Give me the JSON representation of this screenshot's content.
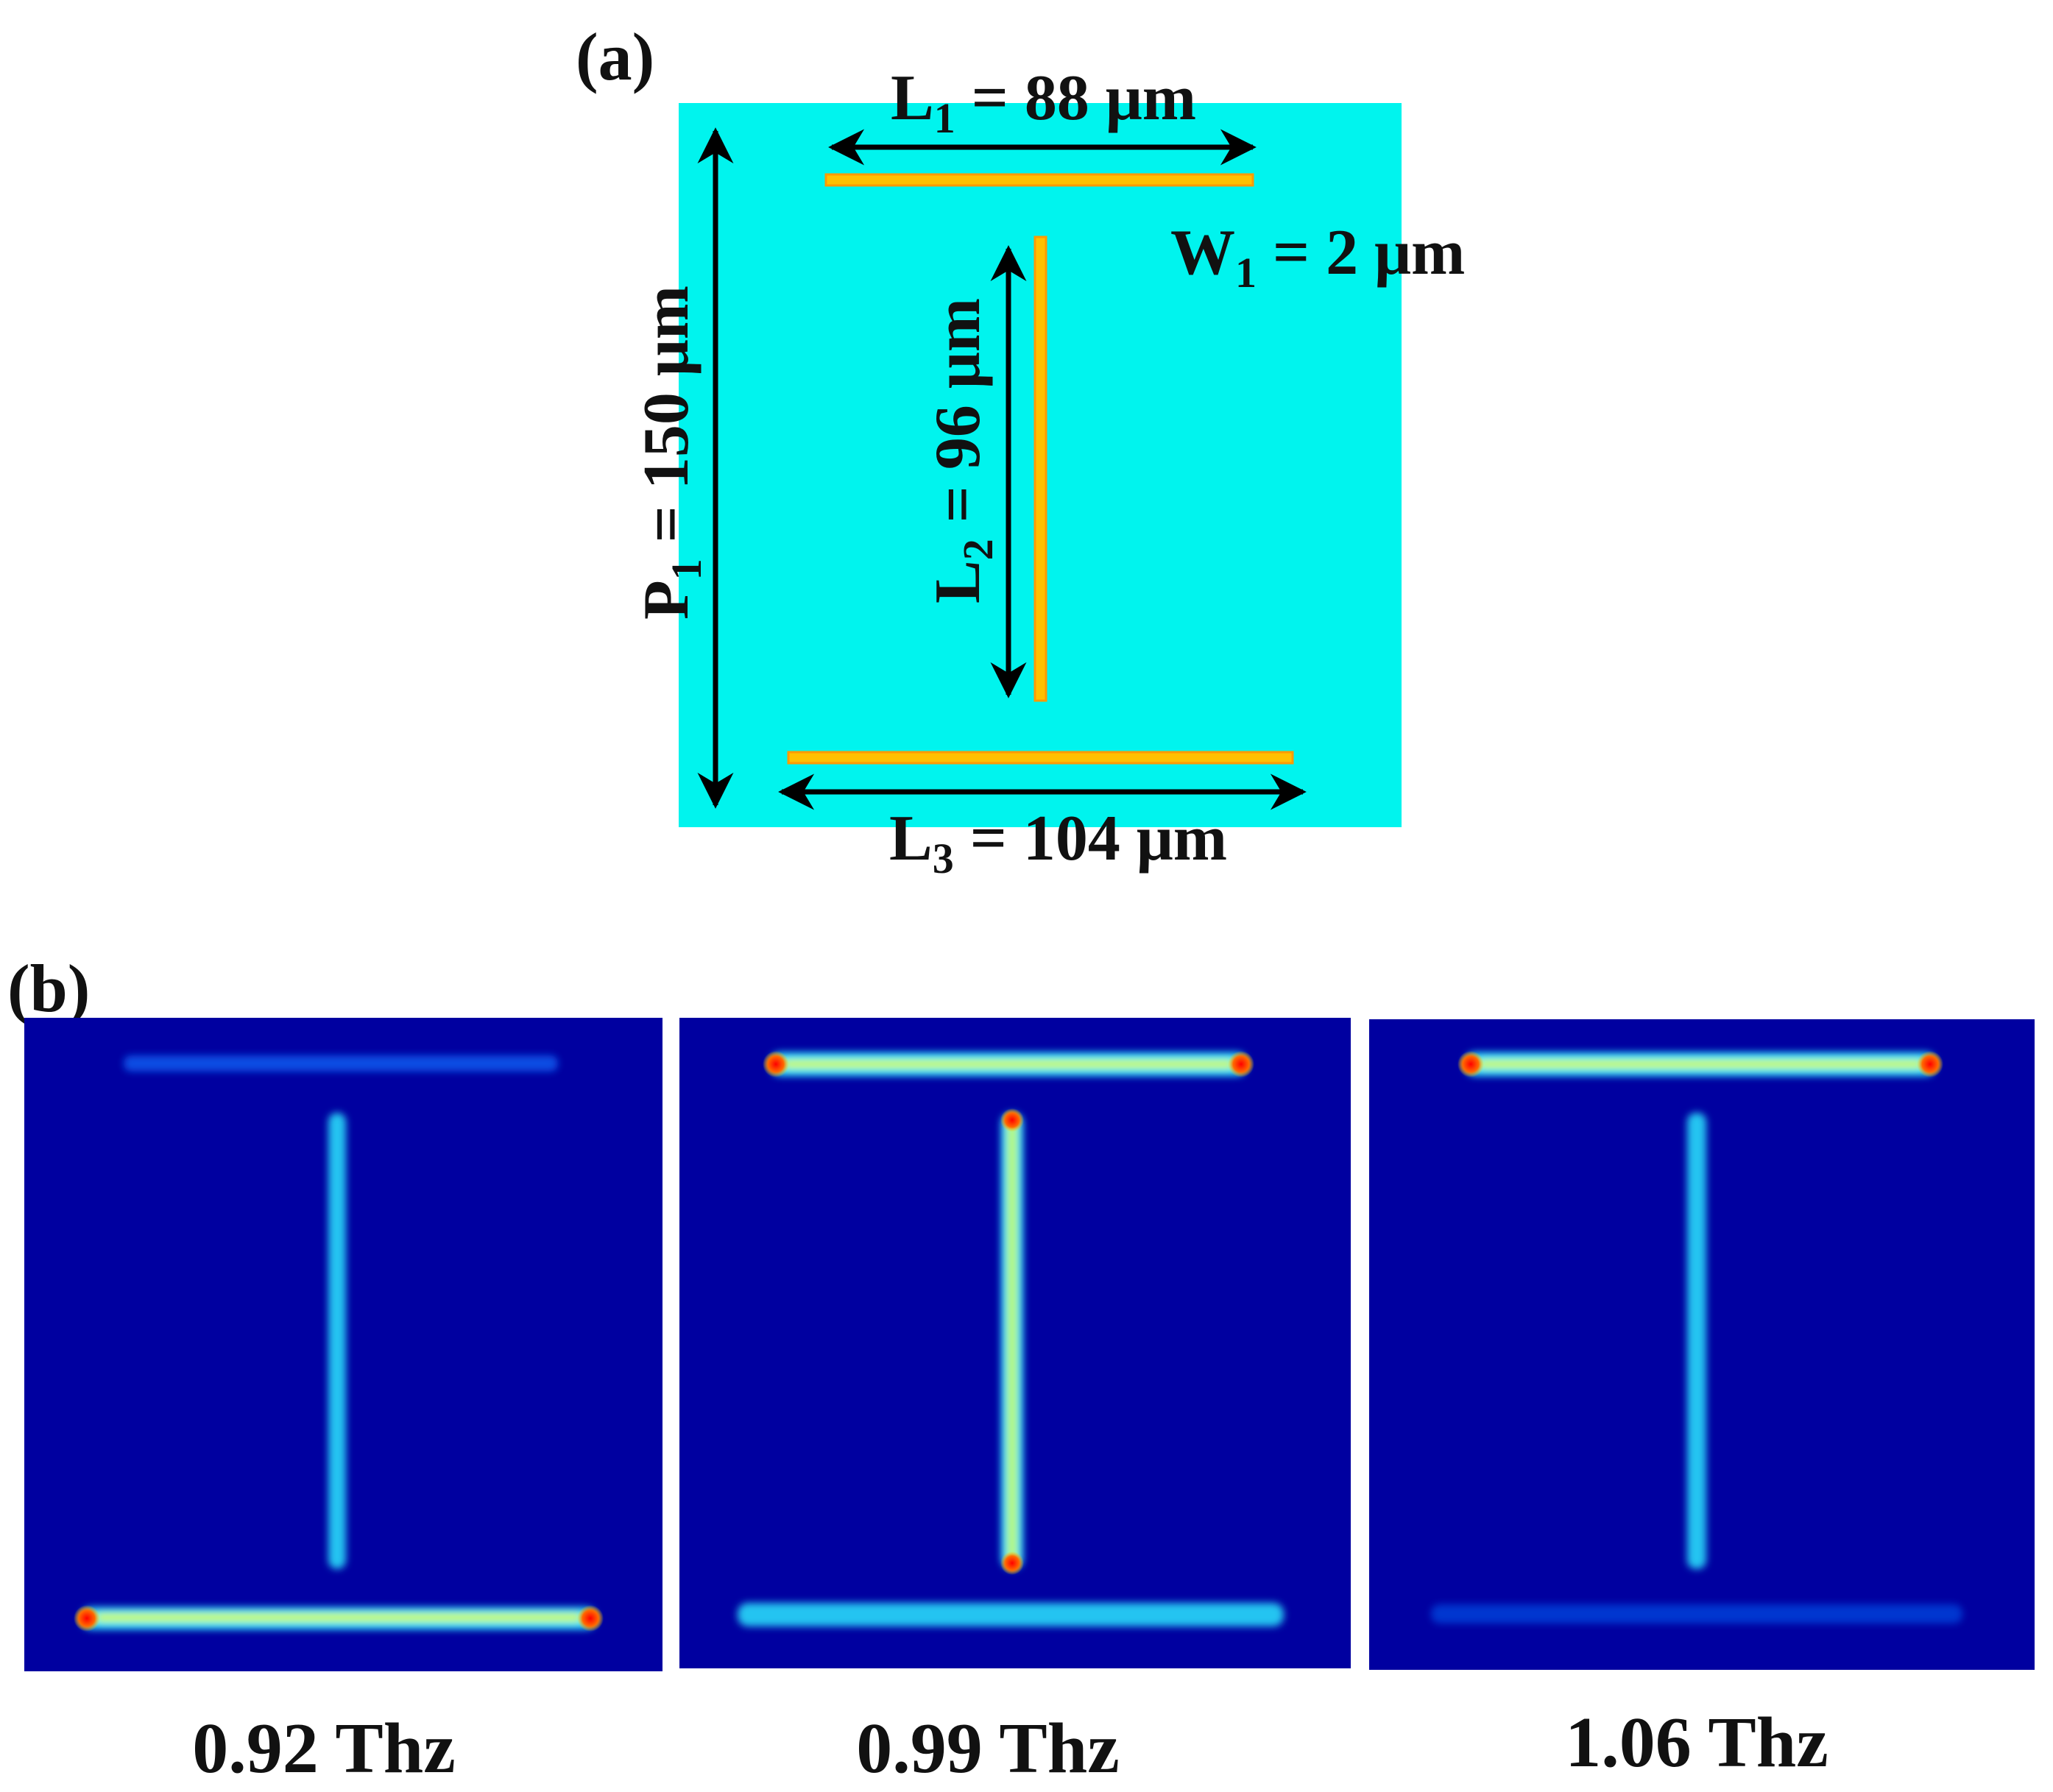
{
  "panel_a": {
    "label": "(a)",
    "colors": {
      "substrate": "#00f4ee",
      "resonator": "#ffc000",
      "resonator_edge": "#ff8c00",
      "arrow": "#000000"
    },
    "dims": {
      "l1": {
        "var": "L",
        "sub": "1",
        "value": " = 88 μm"
      },
      "l2": {
        "var": "L",
        "sub": "2",
        "value": " = 96 μm"
      },
      "l3": {
        "var": "L",
        "sub": "3",
        "value": " = 104 μm"
      },
      "w1": {
        "var": "W",
        "sub": "1",
        "value": " = 2 μm"
      },
      "p1": {
        "var": "P",
        "sub": "1",
        "value": " = 150 μm"
      }
    }
  },
  "panel_b": {
    "label": "(b)",
    "colors": {
      "background": "#0000a0",
      "weak": "#0a6cff",
      "medium": "#2ce6ff",
      "strong": "#f4ff3a",
      "peak": "#e00000"
    },
    "frequencies": [
      {
        "label": "0.92 Thz",
        "top_bar": "weak",
        "stem": "medium",
        "bottom_bar": "strong"
      },
      {
        "label": "0.99 Thz",
        "top_bar": "strong",
        "stem": "strong",
        "bottom_bar": "medium"
      },
      {
        "label": "1.06 Thz",
        "top_bar": "strong",
        "stem": "medium",
        "bottom_bar": "weak"
      }
    ]
  }
}
